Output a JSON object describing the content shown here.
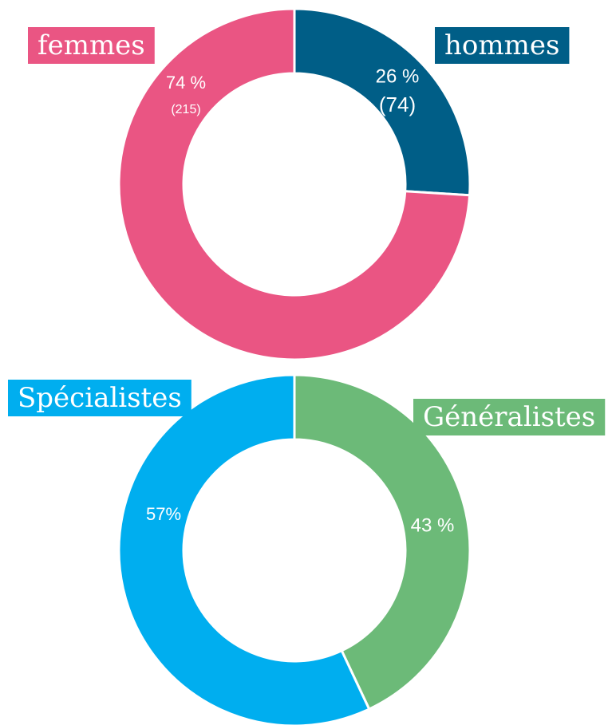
{
  "chart_data": [
    {
      "type": "donut",
      "categories": [
        "hommes",
        "femmes"
      ],
      "values": [
        26,
        74
      ],
      "value_labels": [
        "26 %",
        "74 %"
      ],
      "counts": [
        74,
        215
      ],
      "count_labels": [
        "(74)",
        "(215)"
      ],
      "colors": [
        "#005e87",
        "#ea5583"
      ]
    },
    {
      "type": "donut",
      "categories": [
        "Généralistes",
        "Spécialistes"
      ],
      "values": [
        43,
        57
      ],
      "value_labels": [
        "43 %",
        "57%"
      ],
      "colors": [
        "#6cba78",
        "#00aeef"
      ]
    }
  ]
}
